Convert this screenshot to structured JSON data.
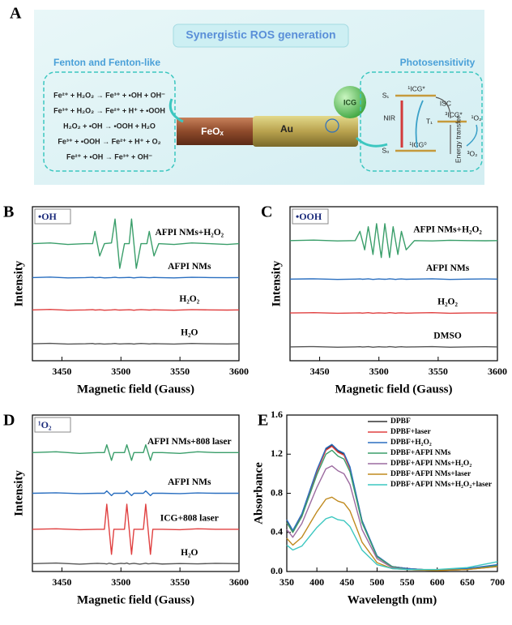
{
  "panel_a": {
    "label": "A",
    "title": "Synergistic ROS generation",
    "fenton_title": "Fenton and Fenton-like",
    "reactions": [
      "Fe²⁺ + H₂O₂ → Fe³⁺ + •OH + OH⁻",
      "Fe³⁺ + H₂O₂ → Fe²⁺ + H⁺ + •OOH",
      "H₂O₂ + •OH → •OOH + H₂O",
      "Fe³⁺ + •OOH → Fe²⁺ + H⁺ + O₂",
      "Fe²⁺ + •OH → Fe³⁺ + OH⁻"
    ],
    "rod_left": "FeOₓ",
    "rod_right": "Au",
    "icg": "ICG",
    "photo_title": "Photosensitivity",
    "s1": "S₁",
    "s1_state": "¹ICG*",
    "isc": "ISC",
    "t1": "T₁",
    "t1_state": "³ICG*",
    "nir": "NIR",
    "s0": "S₀",
    "s0_state": "¹ICG⁰",
    "energy_transfer": "Energy transfer",
    "singlet_o2": "¹O₂",
    "triplet_o2": "³O₂"
  },
  "chart_data": [
    {
      "type": "line",
      "panel": "B",
      "tag": "•OH",
      "xlabel": "Magnetic field (Gauss)",
      "ylabel": "Intensity",
      "x": [
        3425,
        3440,
        3455,
        3470,
        3476,
        3478,
        3480,
        3482,
        3486,
        3492,
        3495,
        3497,
        3499,
        3503,
        3507,
        3509,
        3511,
        3513,
        3517,
        3522,
        3524,
        3526,
        3528,
        3532,
        3545,
        3560,
        3575,
        3590,
        3600
      ],
      "xlim": [
        3425,
        3600
      ],
      "xticks": [
        3450,
        3500,
        3550,
        3600
      ],
      "ylim": [
        0,
        100
      ],
      "series": [
        {
          "name": "AFPI NMs+H₂O₂",
          "color": "#3a9e6a",
          "values": [
            76,
            76.5,
            75.5,
            76,
            76,
            84,
            76,
            68,
            76,
            76.5,
            92,
            76,
            60,
            76,
            76,
            92,
            76,
            60,
            76,
            76,
            84,
            76,
            68,
            76,
            75.5,
            76.5,
            76,
            75.5,
            76
          ]
        },
        {
          "name": "AFPI NMs",
          "color": "#2a6fc0",
          "values": [
            54,
            54.3,
            53.8,
            54,
            54.2,
            53.9,
            54,
            54.1,
            53.8,
            54,
            54.2,
            54,
            53.9,
            54,
            54.1,
            54,
            53.8,
            54,
            54.2,
            54,
            53.9,
            54,
            54.1,
            54,
            53.8,
            54.2,
            54,
            53.9,
            54
          ]
        },
        {
          "name": "H₂O₂",
          "color": "#e04040",
          "values": [
            33,
            33.3,
            32.8,
            33,
            33.2,
            32.9,
            33,
            33.1,
            32.8,
            33,
            33.2,
            33,
            32.9,
            33,
            33.1,
            33,
            32.8,
            33,
            33.2,
            33,
            32.9,
            33,
            33.1,
            33,
            32.8,
            33.2,
            33,
            32.9,
            33
          ]
        },
        {
          "name": "H₂O",
          "color": "#555555",
          "values": [
            11,
            11.3,
            10.8,
            11,
            11.2,
            10.9,
            11,
            11.1,
            10.8,
            11,
            11.2,
            11,
            10.9,
            11,
            11.1,
            11,
            10.8,
            11,
            11.2,
            11,
            10.9,
            11,
            11.1,
            11,
            10.8,
            11.2,
            11,
            10.9,
            11
          ]
        }
      ]
    },
    {
      "type": "line",
      "panel": "C",
      "tag": "•OOH",
      "xlabel": "Magnetic field (Gauss)",
      "ylabel": "Intensity",
      "x": [
        3425,
        3445,
        3465,
        3480,
        3484,
        3486,
        3488,
        3491,
        3493,
        3495,
        3498,
        3500,
        3502,
        3505,
        3507,
        3509,
        3512,
        3514,
        3516,
        3519,
        3521,
        3523,
        3530,
        3545,
        3560,
        3575,
        3590,
        3600
      ],
      "xlim": [
        3425,
        3600
      ],
      "xticks": [
        3450,
        3500,
        3550,
        3600
      ],
      "ylim": [
        0,
        100
      ],
      "series": [
        {
          "name": "AFPI NMs+H₂O₂",
          "color": "#3a9e6a",
          "values": [
            78,
            78.3,
            77.8,
            78,
            84,
            78,
            72,
            87,
            78,
            69,
            89,
            78,
            67,
            89,
            78,
            67,
            87,
            78,
            69,
            84,
            78,
            72,
            78,
            77.8,
            78.2,
            78,
            77.9,
            78
          ]
        },
        {
          "name": "AFPI NMs",
          "color": "#2a6fc0",
          "values": [
            53,
            53.2,
            52.8,
            53,
            53.1,
            52.9,
            53,
            53.2,
            53,
            52.8,
            53,
            53.1,
            53,
            52.9,
            53,
            53.2,
            53,
            52.8,
            53,
            53.1,
            53,
            52.9,
            53,
            53.2,
            52.8,
            53,
            53.1,
            53
          ]
        },
        {
          "name": "H₂O₂",
          "color": "#e04040",
          "values": [
            31,
            31.2,
            30.8,
            31,
            31.1,
            30.9,
            31,
            31.2,
            31,
            30.8,
            31,
            31.1,
            31,
            30.9,
            31,
            31.2,
            31,
            30.8,
            31,
            31.1,
            31,
            30.9,
            31,
            31.2,
            30.8,
            31,
            31.1,
            31
          ]
        },
        {
          "name": "DMSO",
          "color": "#555555",
          "values": [
            9,
            9.2,
            8.8,
            9,
            9.1,
            8.9,
            9,
            9.2,
            9,
            8.8,
            9,
            9.1,
            9,
            8.9,
            9,
            9.2,
            9,
            8.8,
            9,
            9.1,
            9,
            8.9,
            9,
            9.2,
            8.8,
            9,
            9.1,
            9
          ]
        }
      ]
    },
    {
      "type": "line",
      "panel": "D",
      "tag": "¹O₂",
      "xlabel": "Magnetic field (Gauss)",
      "ylabel": "Intensity",
      "x": [
        3425,
        3445,
        3465,
        3480,
        3486,
        3488,
        3490,
        3492,
        3494,
        3500,
        3503,
        3505,
        3507,
        3509,
        3511,
        3516,
        3519,
        3521,
        3523,
        3525,
        3527,
        3535,
        3550,
        3565,
        3580,
        3600
      ],
      "xlim": [
        3425,
        3600
      ],
      "xticks": [
        3450,
        3500,
        3550,
        3600
      ],
      "ylim": [
        0,
        100
      ],
      "series": [
        {
          "name": "AFPI NMs+808 laser",
          "color": "#3a9e6a",
          "values": [
            76,
            76.5,
            75.5,
            76,
            76,
            81,
            76,
            71,
            76,
            76,
            76,
            81,
            76,
            71,
            76,
            76,
            76,
            81,
            76,
            71,
            76,
            76,
            75.5,
            76.5,
            76,
            76
          ]
        },
        {
          "name": "AFPI NMs",
          "color": "#2a6fc0",
          "values": [
            50,
            50.3,
            49.8,
            50,
            50,
            51.5,
            50,
            48.5,
            50,
            50,
            50,
            51.5,
            50,
            48.5,
            50,
            50,
            50,
            51.5,
            50,
            48.5,
            50,
            50,
            49.8,
            50.2,
            50,
            50
          ]
        },
        {
          "name": "ICG+808 laser",
          "color": "#e04040",
          "values": [
            27,
            27.3,
            26.7,
            27,
            27,
            43,
            27,
            11,
            27,
            27,
            27,
            43,
            27,
            11,
            27,
            27,
            27,
            43,
            27,
            11,
            27,
            27,
            26.7,
            27.3,
            27,
            27
          ]
        },
        {
          "name": "H₂O",
          "color": "#555555",
          "values": [
            5,
            5.4,
            4.7,
            5.2,
            5,
            4.8,
            5.3,
            5,
            4.7,
            5.2,
            5,
            5.4,
            4.8,
            5,
            5.2,
            4.7,
            5,
            5.3,
            4.9,
            5,
            5.2,
            4.8,
            5.1,
            4.9,
            5.2,
            5
          ]
        }
      ]
    },
    {
      "type": "line",
      "panel": "E",
      "xlabel": "Wavelength (nm)",
      "ylabel": "Absorbance",
      "legend": "upper right",
      "x": [
        350,
        360,
        375,
        400,
        415,
        425,
        435,
        445,
        455,
        475,
        500,
        525,
        550,
        600,
        650,
        700
      ],
      "xlim": [
        350,
        700
      ],
      "xticks": [
        350,
        400,
        450,
        500,
        550,
        600,
        650,
        700
      ],
      "ylim": [
        0,
        1.6
      ],
      "yticks": [
        {
          "value": 0,
          "label": "0.0"
        },
        0.4,
        0.8,
        1.2,
        1.6
      ],
      "series": [
        {
          "name": "DPBF",
          "color": "#333333",
          "values": [
            0.52,
            0.41,
            0.58,
            1.03,
            1.25,
            1.29,
            1.23,
            1.2,
            1.06,
            0.52,
            0.15,
            0.05,
            0.03,
            0.01,
            0.03,
            0.06
          ]
        },
        {
          "name": "DPBF+laser",
          "color": "#e04040",
          "values": [
            0.5,
            0.4,
            0.57,
            1.02,
            1.24,
            1.28,
            1.22,
            1.19,
            1.05,
            0.51,
            0.15,
            0.05,
            0.03,
            0.01,
            0.02,
            0.06
          ]
        },
        {
          "name": "DPBF+H₂O₂",
          "color": "#2a6fc0",
          "values": [
            0.53,
            0.42,
            0.59,
            1.04,
            1.26,
            1.3,
            1.24,
            1.21,
            1.07,
            0.52,
            0.16,
            0.05,
            0.03,
            0.01,
            0.03,
            0.07
          ]
        },
        {
          "name": "DPBF+AFPI NMs",
          "color": "#3a9e6a",
          "values": [
            0.5,
            0.4,
            0.56,
            0.99,
            1.2,
            1.24,
            1.18,
            1.15,
            1.02,
            0.5,
            0.15,
            0.05,
            0.02,
            0.01,
            0.02,
            0.06
          ]
        },
        {
          "name": "DPBF+AFPI NMs+H₂O₂",
          "color": "#9c6ba0",
          "values": [
            0.43,
            0.35,
            0.49,
            0.86,
            1.05,
            1.08,
            1.03,
            1.0,
            0.89,
            0.43,
            0.13,
            0.04,
            0.02,
            0.01,
            0.02,
            0.05
          ]
        },
        {
          "name": "DPBF+AFPI NMs+laser",
          "color": "#c08a1f",
          "values": [
            0.34,
            0.27,
            0.35,
            0.61,
            0.74,
            0.76,
            0.72,
            0.7,
            0.62,
            0.3,
            0.09,
            0.03,
            0.02,
            0.01,
            0.02,
            0.05
          ]
        },
        {
          "name": "DPBF+AFPI NMs+H₂O₂+laser",
          "color": "#3cc7c0",
          "values": [
            0.27,
            0.22,
            0.26,
            0.45,
            0.54,
            0.56,
            0.53,
            0.52,
            0.46,
            0.22,
            0.07,
            0.03,
            0.02,
            0.02,
            0.04,
            0.1
          ]
        }
      ]
    }
  ]
}
